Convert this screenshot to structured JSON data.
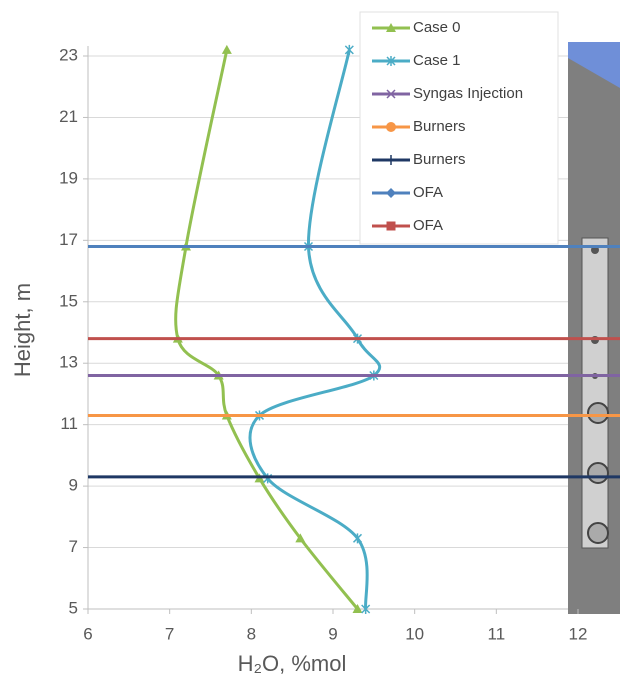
{
  "chart_data": {
    "type": "line",
    "x_label": "H₂O, %mol",
    "y_label": "Height, m",
    "xlim": [
      6,
      12
    ],
    "ylim": [
      5,
      23
    ],
    "xticks": [
      6,
      7,
      8,
      9,
      10,
      11,
      12
    ],
    "yticks": [
      5,
      7,
      9,
      11,
      13,
      15,
      17,
      19,
      21,
      23
    ],
    "grid": true,
    "smooth": true,
    "legend": "top-right",
    "series": [
      {
        "name": "Case 0",
        "color": "#92c050",
        "marker": "triangle",
        "x": [
          7.7,
          7.2,
          7.1,
          7.6,
          7.7,
          8.1,
          8.6,
          9.3
        ],
        "y": [
          23.2,
          16.8,
          13.8,
          12.6,
          11.3,
          9.25,
          7.3,
          5
        ]
      },
      {
        "name": "Case 1",
        "color": "#4bacc6",
        "marker": "star",
        "x": [
          9.2,
          8.7,
          9.3,
          9.5,
          8.1,
          8.2,
          9.3,
          9.4
        ],
        "y": [
          23.2,
          16.8,
          13.8,
          12.6,
          11.3,
          9.25,
          7.3,
          5
        ]
      },
      {
        "name": "Syngas Injection",
        "color": "#8064a2",
        "marker": "x",
        "level": 12.6
      },
      {
        "name": "Burners",
        "color": "#f79646",
        "marker": "circle",
        "level": 11.3
      },
      {
        "name": "Burners",
        "color": "#1f3864",
        "marker": "plus",
        "level": 9.3
      },
      {
        "name": "OFA",
        "color": "#4f81bd",
        "marker": "diamond",
        "level": 16.8
      },
      {
        "name": "OFA",
        "color": "#c0504d",
        "marker": "square",
        "level": 13.8
      }
    ]
  }
}
